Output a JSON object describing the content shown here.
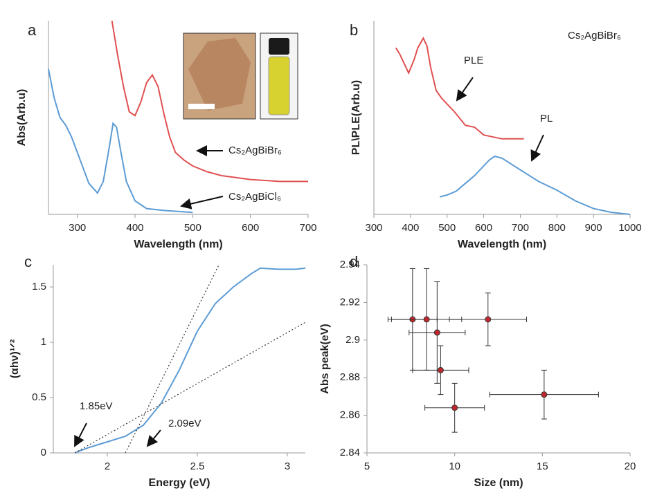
{
  "chart_data": [
    {
      "type": "line",
      "label": "a",
      "xlabel": "Wavelength (nm)",
      "ylabel": "Abs(Arb.u)",
      "xlim": [
        250,
        700
      ],
      "xticks": [
        300,
        400,
        500,
        600,
        700
      ],
      "ylim": [
        0,
        1
      ],
      "series": [
        {
          "name": "Cs₂AgBiBr₆",
          "color": "#e05050",
          "x": [
            360,
            370,
            380,
            390,
            400,
            410,
            420,
            430,
            440,
            450,
            460,
            470,
            485,
            500,
            525,
            550,
            600,
            650,
            700
          ],
          "values": [
            1.0,
            0.82,
            0.66,
            0.53,
            0.51,
            0.58,
            0.68,
            0.72,
            0.66,
            0.52,
            0.4,
            0.32,
            0.28,
            0.25,
            0.22,
            0.2,
            0.18,
            0.17,
            0.17
          ]
        },
        {
          "name": "Cs₂AgBiCl₆",
          "color": "#5b9bd5",
          "x": [
            250,
            260,
            270,
            280,
            290,
            300,
            310,
            320,
            335,
            345,
            355,
            362,
            368,
            375,
            385,
            400,
            420,
            450,
            500
          ],
          "values": [
            0.75,
            0.6,
            0.5,
            0.46,
            0.4,
            0.32,
            0.24,
            0.16,
            0.11,
            0.17,
            0.34,
            0.47,
            0.45,
            0.33,
            0.17,
            0.07,
            0.03,
            0.02,
            0.01
          ]
        }
      ],
      "annotations": [
        {
          "text": "Cs₂AgBiBr₆"
        },
        {
          "text": "Cs₂AgBiCl₆"
        }
      ]
    },
    {
      "type": "line",
      "label": "b",
      "xlabel": "Wavelength (nm)",
      "ylabel": "PL\\PLE(Arb.u)",
      "xlim": [
        300,
        1000
      ],
      "xticks": [
        300,
        400,
        500,
        600,
        700,
        800,
        900,
        1000
      ],
      "ylim": [
        0,
        1
      ],
      "series": [
        {
          "name": "PLE",
          "color": "#e05050",
          "x": [
            360,
            370,
            380,
            395,
            410,
            420,
            435,
            445,
            455,
            470,
            485,
            500,
            520,
            550,
            575,
            600,
            650,
            710
          ],
          "values": [
            0.86,
            0.83,
            0.79,
            0.73,
            0.8,
            0.86,
            0.91,
            0.87,
            0.76,
            0.64,
            0.6,
            0.57,
            0.53,
            0.46,
            0.45,
            0.41,
            0.39,
            0.39
          ]
        },
        {
          "name": "PL",
          "color": "#5b9bd5",
          "x": [
            480,
            500,
            525,
            550,
            575,
            600,
            615,
            630,
            650,
            675,
            700,
            750,
            800,
            850,
            900,
            950,
            1000
          ],
          "values": [
            0.09,
            0.1,
            0.12,
            0.16,
            0.2,
            0.25,
            0.28,
            0.3,
            0.29,
            0.26,
            0.23,
            0.17,
            0.125,
            0.07,
            0.03,
            0.01,
            0.0
          ]
        }
      ],
      "annotations": [
        {
          "text": "PLE"
        },
        {
          "text": "PL"
        },
        {
          "text": "Cs₂AgBiBr₆"
        }
      ]
    },
    {
      "type": "line",
      "label": "c",
      "xlabel": "Energy (eV)",
      "ylabel": "(αhν)¹ᐟ²",
      "xlim": [
        1.7,
        3.1
      ],
      "xticks": [
        2,
        2.5,
        3
      ],
      "ylim": [
        0,
        1.7
      ],
      "yticks": [
        0,
        0.5,
        1,
        1.5
      ],
      "series": [
        {
          "color": "#5b9bd5",
          "x": [
            1.82,
            1.85,
            1.9,
            2.0,
            2.1,
            2.2,
            2.3,
            2.4,
            2.5,
            2.6,
            2.7,
            2.8,
            2.85,
            2.95,
            3.05,
            3.1
          ],
          "values": [
            0,
            0.02,
            0.05,
            0.1,
            0.15,
            0.25,
            0.45,
            0.75,
            1.1,
            1.35,
            1.5,
            1.62,
            1.67,
            1.66,
            1.66,
            1.67
          ]
        },
        {
          "color": "#333333",
          "dashed": true,
          "x": [
            2.1,
            2.62
          ],
          "values": [
            0,
            1.7
          ]
        },
        {
          "color": "#333333",
          "dashed": true,
          "x": [
            1.82,
            3.1
          ],
          "values": [
            0,
            1.18
          ]
        }
      ],
      "annotations": [
        {
          "text": "1.85eV"
        },
        {
          "text": "2.09eV"
        }
      ]
    },
    {
      "type": "scatter",
      "label": "d",
      "xlabel": "Size (nm)",
      "ylabel": "Abs peak(eV)",
      "xlim": [
        5,
        20
      ],
      "xticks": [
        5,
        10,
        15,
        20
      ],
      "ylim": [
        2.84,
        2.94
      ],
      "yticks": [
        2.84,
        2.86,
        2.88,
        2.9,
        2.92,
        2.94
      ],
      "color": "#c0282d",
      "x": [
        7.6,
        8.4,
        9.0,
        9.2,
        11.9,
        15.1,
        10.0
      ],
      "values": [
        2.911,
        2.911,
        2.904,
        2.884,
        2.911,
        2.871,
        2.864
      ],
      "xerr": [
        1.4,
        2.0,
        1.6,
        1.6,
        2.2,
        3.1,
        1.7
      ],
      "yerr": [
        0.027,
        0.027,
        0.027,
        0.013,
        0.014,
        0.013,
        0.013
      ]
    }
  ]
}
